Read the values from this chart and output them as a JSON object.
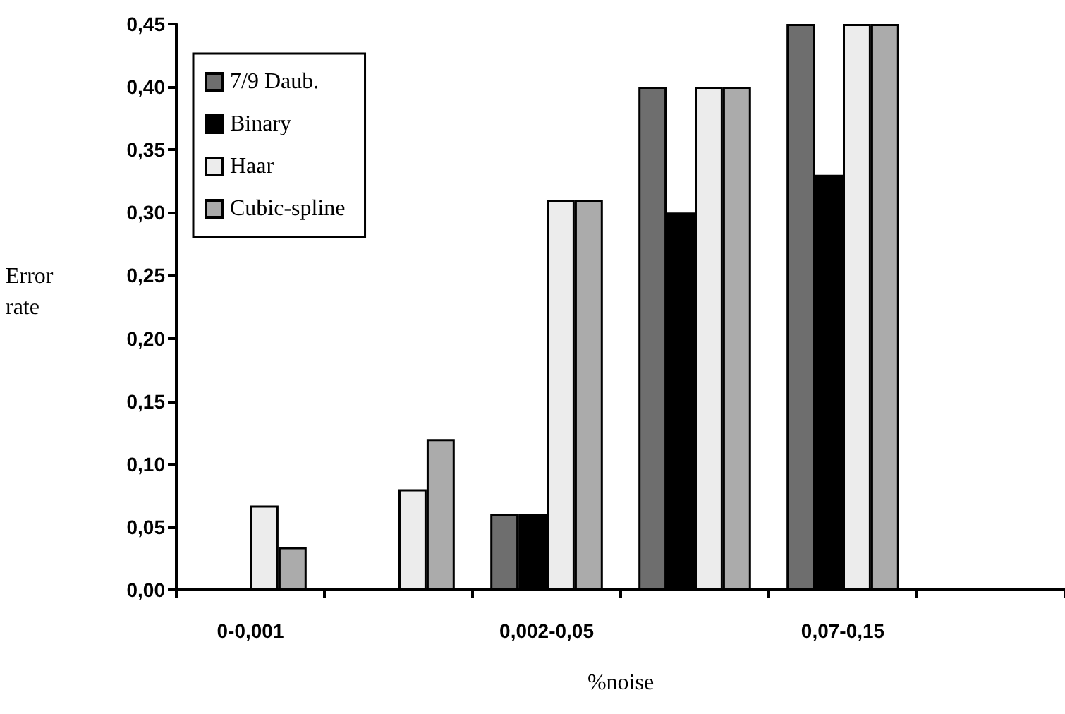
{
  "chart_data": {
    "type": "bar",
    "xlabel": "%noise",
    "ylabel": "Error rate",
    "categories": [
      "0-0,001",
      null,
      "0,002-0,05",
      null,
      "0,07-0,15",
      null
    ],
    "series": [
      {
        "name": "7/9 Daub.",
        "color": "#6e6e6e",
        "values": [
          0,
          0,
          0.06,
          0.4,
          0.45,
          null
        ]
      },
      {
        "name": "Binary",
        "color": "#000000",
        "values": [
          0,
          0,
          0.06,
          0.3,
          0.33,
          null
        ]
      },
      {
        "name": "Haar",
        "color": "#ececec",
        "values": [
          0.067,
          0.08,
          0.31,
          0.4,
          0.45,
          null
        ]
      },
      {
        "name": "Cubic-spline",
        "color": "#ababab",
        "values": [
          0.034,
          0.12,
          0.31,
          0.4,
          0.45,
          null
        ]
      }
    ],
    "ylim": [
      0,
      0.45
    ],
    "yticks": [
      {
        "value": 0,
        "label": "0,00"
      },
      {
        "value": 0.05,
        "label": "0,05"
      },
      {
        "value": 0.1,
        "label": "0,10"
      },
      {
        "value": 0.15,
        "label": "0,15"
      },
      {
        "value": 0.2,
        "label": "0,20"
      },
      {
        "value": 0.25,
        "label": "0,25"
      },
      {
        "value": 0.3,
        "label": "0,30"
      },
      {
        "value": 0.35,
        "label": "0,35"
      },
      {
        "value": 0.4,
        "label": "0,40"
      },
      {
        "value": 0.45,
        "label": "0,45"
      }
    ],
    "grid": false,
    "legend": "top left"
  }
}
